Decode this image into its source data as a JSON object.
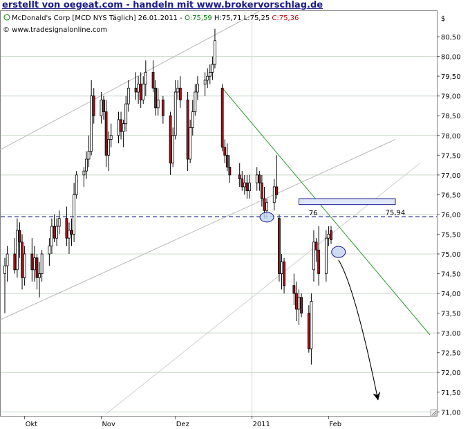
{
  "header": {
    "title": "erstellt von oegeat.com - handeln mit www.brokervorschlag.de"
  },
  "info": {
    "instrument": "McDonald's Corp [MCD NYS  Täglich] 26.01.2011 - ",
    "open_label": "O:75,59",
    "high_label": "H:75,71",
    "low_label": "L:75,25",
    "close_label": "C:75,36",
    "source": "© www.tradesignalonline.com",
    "colors": {
      "open": "#008000",
      "high": "#000000",
      "low": "#000000",
      "close": "#cc0000"
    }
  },
  "annotations": {
    "level_line_value": 75.94,
    "level_label": "75,94",
    "resistance_label": "76"
  },
  "chart_data": {
    "type": "candlestick",
    "currency_label": "$",
    "ylim": [
      70.9,
      81.15
    ],
    "y_ticks": [
      "80,50",
      "80,00",
      "79,50",
      "79,00",
      "78,50",
      "78,00",
      "77,50",
      "77,00",
      "76,50",
      "76,00",
      "75,50",
      "75,00",
      "74,50",
      "74,00",
      "73,50",
      "73,00",
      "72,50",
      "72,00",
      "71,50",
      "71,00"
    ],
    "y_tick_values": [
      80.5,
      80.0,
      79.5,
      79.0,
      78.5,
      78.0,
      77.5,
      77.0,
      76.5,
      76.0,
      75.5,
      75.0,
      74.5,
      74.0,
      73.5,
      73.0,
      72.5,
      72.0,
      71.5,
      71.0
    ],
    "x_ticks": [
      "Okt",
      "Nov",
      "Dez",
      "2011",
      "Feb"
    ],
    "candles": [
      {
        "date": "2010-09-23",
        "o": 74.5,
        "h": 74.9,
        "l": 73.5,
        "c": 74.7
      },
      {
        "date": "2010-09-24",
        "o": 74.7,
        "h": 75.2,
        "l": 74.3,
        "c": 75.0
      },
      {
        "date": "2010-09-27",
        "o": 75.0,
        "h": 75.4,
        "l": 74.5,
        "c": 74.6
      },
      {
        "date": "2010-09-28",
        "o": 74.6,
        "h": 75.9,
        "l": 74.4,
        "c": 75.6
      },
      {
        "date": "2010-09-29",
        "o": 75.6,
        "h": 75.8,
        "l": 74.9,
        "c": 75.3
      },
      {
        "date": "2010-09-30",
        "o": 75.3,
        "h": 75.5,
        "l": 74.1,
        "c": 74.4
      },
      {
        "date": "2010-10-01",
        "o": 74.4,
        "h": 75.2,
        "l": 74.2,
        "c": 75.0
      },
      {
        "date": "2010-10-04",
        "o": 75.0,
        "h": 75.4,
        "l": 74.3,
        "c": 74.6
      },
      {
        "date": "2010-10-05",
        "o": 74.6,
        "h": 75.2,
        "l": 74.3,
        "c": 74.9
      },
      {
        "date": "2010-10-06",
        "o": 74.9,
        "h": 75.0,
        "l": 74.1,
        "c": 74.4
      },
      {
        "date": "2010-10-07",
        "o": 74.4,
        "h": 74.8,
        "l": 73.9,
        "c": 74.5
      },
      {
        "date": "2010-10-08",
        "o": 74.5,
        "h": 75.1,
        "l": 74.3,
        "c": 75.0
      },
      {
        "date": "2010-10-11",
        "o": 75.0,
        "h": 75.4,
        "l": 74.7,
        "c": 75.2
      },
      {
        "date": "2010-10-12",
        "o": 75.2,
        "h": 75.9,
        "l": 75.0,
        "c": 75.7
      },
      {
        "date": "2010-10-13",
        "o": 75.7,
        "h": 76.0,
        "l": 75.3,
        "c": 75.4
      },
      {
        "date": "2010-10-14",
        "o": 75.4,
        "h": 75.9,
        "l": 75.2,
        "c": 75.7
      },
      {
        "date": "2010-10-15",
        "o": 75.7,
        "h": 76.1,
        "l": 75.5,
        "c": 75.9
      },
      {
        "date": "2010-10-18",
        "o": 75.9,
        "h": 76.2,
        "l": 75.2,
        "c": 75.4
      },
      {
        "date": "2010-10-19",
        "o": 75.4,
        "h": 75.8,
        "l": 75.0,
        "c": 75.6
      },
      {
        "date": "2010-10-20",
        "o": 75.6,
        "h": 75.9,
        "l": 75.2,
        "c": 75.5
      },
      {
        "date": "2010-10-21",
        "o": 75.5,
        "h": 76.8,
        "l": 75.3,
        "c": 76.5
      },
      {
        "date": "2010-10-22",
        "o": 76.5,
        "h": 77.1,
        "l": 76.4,
        "c": 77.0
      },
      {
        "date": "2010-10-25",
        "o": 77.0,
        "h": 77.2,
        "l": 76.7,
        "c": 77.1
      },
      {
        "date": "2010-10-26",
        "o": 77.1,
        "h": 77.6,
        "l": 76.9,
        "c": 77.4
      },
      {
        "date": "2010-10-27",
        "o": 77.4,
        "h": 78.0,
        "l": 77.2,
        "c": 77.6
      },
      {
        "date": "2010-10-28",
        "o": 77.6,
        "h": 79.4,
        "l": 77.5,
        "c": 79.0
      },
      {
        "date": "2010-10-29",
        "o": 79.0,
        "h": 79.2,
        "l": 78.3,
        "c": 78.5
      },
      {
        "date": "2010-11-01",
        "o": 78.5,
        "h": 79.1,
        "l": 78.3,
        "c": 78.9
      },
      {
        "date": "2010-11-02",
        "o": 78.9,
        "h": 79.0,
        "l": 78.4,
        "c": 78.6
      },
      {
        "date": "2010-11-03",
        "o": 78.6,
        "h": 78.9,
        "l": 77.2,
        "c": 77.5
      },
      {
        "date": "2010-11-04",
        "o": 77.5,
        "h": 78.1,
        "l": 77.1,
        "c": 77.9
      },
      {
        "date": "2010-11-05",
        "o": 77.9,
        "h": 78.3,
        "l": 77.7,
        "c": 78.0
      },
      {
        "date": "2010-11-08",
        "o": 78.0,
        "h": 78.6,
        "l": 77.8,
        "c": 78.4
      },
      {
        "date": "2010-11-09",
        "o": 78.4,
        "h": 78.6,
        "l": 77.9,
        "c": 78.1
      },
      {
        "date": "2010-11-10",
        "o": 78.1,
        "h": 78.4,
        "l": 77.7,
        "c": 78.3
      },
      {
        "date": "2010-11-11",
        "o": 78.3,
        "h": 79.0,
        "l": 78.1,
        "c": 78.8
      },
      {
        "date": "2010-11-12",
        "o": 78.8,
        "h": 79.4,
        "l": 78.6,
        "c": 79.2
      },
      {
        "date": "2010-11-15",
        "o": 79.2,
        "h": 79.6,
        "l": 78.9,
        "c": 79.1
      },
      {
        "date": "2010-11-16",
        "o": 79.1,
        "h": 79.5,
        "l": 78.8,
        "c": 79.3
      },
      {
        "date": "2010-11-17",
        "o": 79.3,
        "h": 79.6,
        "l": 78.7,
        "c": 78.9
      },
      {
        "date": "2010-11-18",
        "o": 78.9,
        "h": 79.5,
        "l": 78.8,
        "c": 79.3
      },
      {
        "date": "2010-11-19",
        "o": 79.3,
        "h": 79.9,
        "l": 79.0,
        "c": 79.6
      },
      {
        "date": "2010-11-22",
        "o": 79.6,
        "h": 79.9,
        "l": 79.1,
        "c": 79.2
      },
      {
        "date": "2010-11-23",
        "o": 79.2,
        "h": 79.4,
        "l": 78.5,
        "c": 78.7
      },
      {
        "date": "2010-11-24",
        "o": 78.7,
        "h": 79.2,
        "l": 78.5,
        "c": 78.9
      },
      {
        "date": "2010-11-26",
        "o": 78.9,
        "h": 79.0,
        "l": 78.3,
        "c": 78.5
      },
      {
        "date": "2010-11-29",
        "o": 78.5,
        "h": 78.6,
        "l": 77.0,
        "c": 77.3
      },
      {
        "date": "2010-11-30",
        "o": 77.3,
        "h": 78.2,
        "l": 77.2,
        "c": 78.0
      },
      {
        "date": "2010-12-01",
        "o": 78.0,
        "h": 79.4,
        "l": 77.9,
        "c": 79.1
      },
      {
        "date": "2010-12-02",
        "o": 79.1,
        "h": 79.4,
        "l": 78.9,
        "c": 79.2
      },
      {
        "date": "2010-12-03",
        "o": 79.2,
        "h": 79.5,
        "l": 78.7,
        "c": 78.9
      },
      {
        "date": "2010-12-06",
        "o": 78.9,
        "h": 79.1,
        "l": 77.1,
        "c": 77.4
      },
      {
        "date": "2010-12-07",
        "o": 77.4,
        "h": 78.4,
        "l": 77.3,
        "c": 78.2
      },
      {
        "date": "2010-12-08",
        "o": 78.2,
        "h": 78.9,
        "l": 78.0,
        "c": 78.6
      },
      {
        "date": "2010-12-09",
        "o": 78.6,
        "h": 79.3,
        "l": 78.5,
        "c": 79.1
      },
      {
        "date": "2010-12-10",
        "o": 79.1,
        "h": 79.5,
        "l": 78.9,
        "c": 79.3
      },
      {
        "date": "2010-12-13",
        "o": 79.3,
        "h": 79.6,
        "l": 79.0,
        "c": 79.4
      },
      {
        "date": "2010-12-14",
        "o": 79.4,
        "h": 79.7,
        "l": 79.2,
        "c": 79.5
      },
      {
        "date": "2010-12-15",
        "o": 79.5,
        "h": 79.8,
        "l": 79.3,
        "c": 79.6
      },
      {
        "date": "2010-12-16",
        "o": 79.6,
        "h": 80.0,
        "l": 79.4,
        "c": 79.8
      },
      {
        "date": "2010-12-17",
        "o": 79.8,
        "h": 80.7,
        "l": 79.7,
        "c": 80.4
      },
      {
        "date": "2010-12-20",
        "o": 79.2,
        "h": 79.3,
        "l": 77.6,
        "c": 77.7
      },
      {
        "date": "2010-12-21",
        "o": 77.7,
        "h": 77.9,
        "l": 77.3,
        "c": 77.5
      },
      {
        "date": "2010-12-22",
        "o": 77.5,
        "h": 77.8,
        "l": 77.1,
        "c": 77.2
      },
      {
        "date": "2010-12-23",
        "o": 77.2,
        "h": 77.5,
        "l": 76.8,
        "c": 77.0
      },
      {
        "date": "2010-12-27",
        "o": 77.0,
        "h": 77.3,
        "l": 76.7,
        "c": 76.9
      },
      {
        "date": "2010-12-28",
        "o": 76.9,
        "h": 77.1,
        "l": 76.6,
        "c": 76.7
      },
      {
        "date": "2010-12-29",
        "o": 76.7,
        "h": 77.0,
        "l": 76.5,
        "c": 76.8
      },
      {
        "date": "2010-12-30",
        "o": 76.8,
        "h": 77.0,
        "l": 76.4,
        "c": 76.6
      },
      {
        "date": "2010-12-31",
        "o": 76.6,
        "h": 77.0,
        "l": 76.4,
        "c": 76.8
      },
      {
        "date": "2011-01-03",
        "o": 76.8,
        "h": 77.2,
        "l": 76.6,
        "c": 77.0
      },
      {
        "date": "2011-01-04",
        "o": 77.0,
        "h": 77.1,
        "l": 76.6,
        "c": 76.8
      },
      {
        "date": "2011-01-05",
        "o": 76.8,
        "h": 77.0,
        "l": 76.2,
        "c": 76.4
      },
      {
        "date": "2011-01-06",
        "o": 76.4,
        "h": 76.7,
        "l": 75.9,
        "c": 76.1
      },
      {
        "date": "2011-01-07",
        "o": 76.1,
        "h": 76.4,
        "l": 75.9,
        "c": 76.3
      },
      {
        "date": "2011-01-10",
        "o": 76.3,
        "h": 76.9,
        "l": 76.1,
        "c": 76.7
      },
      {
        "date": "2011-01-11",
        "o": 76.7,
        "h": 77.5,
        "l": 76.4,
        "c": 76.5
      },
      {
        "date": "2011-01-12",
        "o": 75.9,
        "h": 76.0,
        "l": 74.3,
        "c": 74.5
      },
      {
        "date": "2011-01-13",
        "o": 74.5,
        "h": 75.0,
        "l": 74.1,
        "c": 74.8
      },
      {
        "date": "2011-01-14",
        "o": 74.8,
        "h": 74.9,
        "l": 74.0,
        "c": 74.2
      },
      {
        "date": "2011-01-18",
        "o": 74.2,
        "h": 74.5,
        "l": 73.7,
        "c": 74.0
      },
      {
        "date": "2011-01-19",
        "o": 74.0,
        "h": 74.3,
        "l": 73.3,
        "c": 73.6
      },
      {
        "date": "2011-01-20",
        "o": 73.6,
        "h": 74.1,
        "l": 73.2,
        "c": 73.9
      },
      {
        "date": "2011-01-21",
        "o": 73.9,
        "h": 74.0,
        "l": 73.4,
        "c": 73.5
      },
      {
        "date": "2011-01-24",
        "o": 73.5,
        "h": 73.7,
        "l": 72.5,
        "c": 72.6
      },
      {
        "date": "2011-01-25",
        "o": 72.6,
        "h": 74.0,
        "l": 72.2,
        "c": 73.8
      },
      {
        "date": "2011-01-26",
        "o": 74.6,
        "h": 75.6,
        "l": 74.3,
        "c": 75.3
      },
      {
        "date": "2011-01-27",
        "o": 75.3,
        "h": 75.4,
        "l": 74.8,
        "c": 75.1
      },
      {
        "date": "2011-01-28",
        "o": 75.1,
        "h": 75.7,
        "l": 74.2,
        "c": 74.5
      },
      {
        "date": "2011-01-31",
        "o": 74.5,
        "h": 75.6,
        "l": 74.3,
        "c": 75.4
      },
      {
        "date": "2011-02-01",
        "o": 75.4,
        "h": 75.7,
        "l": 75.2,
        "c": 75.5
      },
      {
        "date": "2011-02-02",
        "o": 75.59,
        "h": 75.71,
        "l": 75.25,
        "c": 75.36
      }
    ]
  }
}
